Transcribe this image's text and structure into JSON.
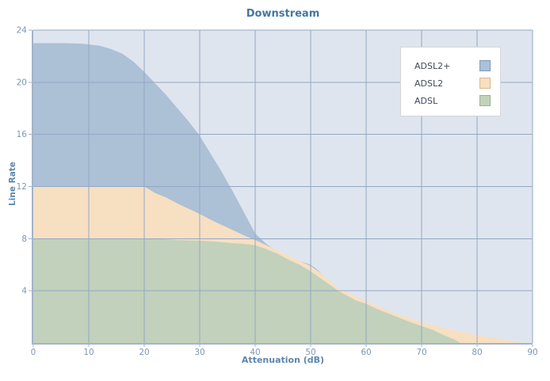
{
  "chart_data": {
    "type": "area",
    "title": "Downstream",
    "xlabel": "Attenuation (dB)",
    "ylabel": "Line Rate",
    "xlim": [
      0,
      90
    ],
    "ylim": [
      0,
      24
    ],
    "x_ticks": [
      0,
      10,
      20,
      30,
      40,
      50,
      60,
      70,
      80,
      90
    ],
    "y_ticks": [
      4,
      8,
      12,
      16,
      20,
      24
    ],
    "grid": true,
    "legend_position": "top-right",
    "colors": {
      "plot_bg": "#dfe5ee",
      "grid": "#93a8c6",
      "axis": "#a2b3ca",
      "title": "#4377a3",
      "axis_label": "#5d86ad",
      "tick_label": "#7b98b4",
      "legend_border": "#d6d6d6",
      "legend_text": "#3f4a59"
    },
    "series": [
      {
        "name": "ADSL2+",
        "fill": "#acc0d6",
        "edge": "#8099ba",
        "points": [
          [
            0,
            23
          ],
          [
            6,
            23
          ],
          [
            9,
            22.95
          ],
          [
            12,
            22.8
          ],
          [
            14,
            22.55
          ],
          [
            16,
            22.2
          ],
          [
            18,
            21.6
          ],
          [
            20,
            20.8
          ],
          [
            22,
            19.9
          ],
          [
            24,
            19.0
          ],
          [
            26,
            18.0
          ],
          [
            28,
            17.0
          ],
          [
            30,
            15.9
          ],
          [
            32,
            14.5
          ],
          [
            34,
            13.1
          ],
          [
            36,
            11.6
          ],
          [
            38,
            10.0
          ],
          [
            40,
            8.4
          ],
          [
            42,
            7.6
          ],
          [
            44,
            7.0
          ],
          [
            46,
            6.6
          ],
          [
            48,
            6.3
          ],
          [
            50,
            6.0
          ],
          [
            51,
            5.7
          ],
          [
            52,
            5.3
          ],
          [
            53,
            4.6
          ]
        ]
      },
      {
        "name": "ADSL2",
        "fill": "#f7dfc2",
        "edge": "#dcb88c",
        "points": [
          [
            0,
            12
          ],
          [
            20,
            12
          ],
          [
            22,
            11.5
          ],
          [
            24,
            11.15
          ],
          [
            26,
            10.7
          ],
          [
            28,
            10.3
          ],
          [
            30,
            9.9
          ],
          [
            32,
            9.45
          ],
          [
            34,
            9.05
          ],
          [
            36,
            8.65
          ],
          [
            38,
            8.25
          ],
          [
            40,
            7.9
          ],
          [
            42,
            7.5
          ],
          [
            44,
            7.1
          ],
          [
            46,
            6.7
          ],
          [
            48,
            6.3
          ],
          [
            50,
            5.9
          ],
          [
            52,
            5.3
          ],
          [
            55,
            4.2
          ],
          [
            58,
            3.6
          ],
          [
            60,
            3.2
          ],
          [
            63,
            2.7
          ],
          [
            65,
            2.3
          ],
          [
            68,
            1.9
          ],
          [
            70,
            1.6
          ],
          [
            73,
            1.25
          ],
          [
            75,
            1.05
          ],
          [
            78,
            0.8
          ],
          [
            80,
            0.6
          ],
          [
            83,
            0.4
          ],
          [
            85,
            0.25
          ],
          [
            88,
            0
          ]
        ]
      },
      {
        "name": "ADSL",
        "fill": "#c2d1bb",
        "edge": "#9bb38f",
        "points": [
          [
            0,
            8
          ],
          [
            20,
            8
          ],
          [
            23,
            7.97
          ],
          [
            26,
            7.9
          ],
          [
            30,
            7.85
          ],
          [
            33,
            7.78
          ],
          [
            36,
            7.65
          ],
          [
            38,
            7.6
          ],
          [
            40,
            7.5
          ],
          [
            42,
            7.2
          ],
          [
            44,
            6.85
          ],
          [
            46,
            6.4
          ],
          [
            48,
            6.0
          ],
          [
            50,
            5.5
          ],
          [
            52,
            4.9
          ],
          [
            55,
            4.0
          ],
          [
            58,
            3.3
          ],
          [
            60,
            3.0
          ],
          [
            62,
            2.6
          ],
          [
            65,
            2.1
          ],
          [
            68,
            1.6
          ],
          [
            70,
            1.3
          ],
          [
            72,
            1.0
          ],
          [
            74,
            0.6
          ],
          [
            76,
            0.25
          ],
          [
            77,
            0
          ]
        ]
      }
    ]
  }
}
